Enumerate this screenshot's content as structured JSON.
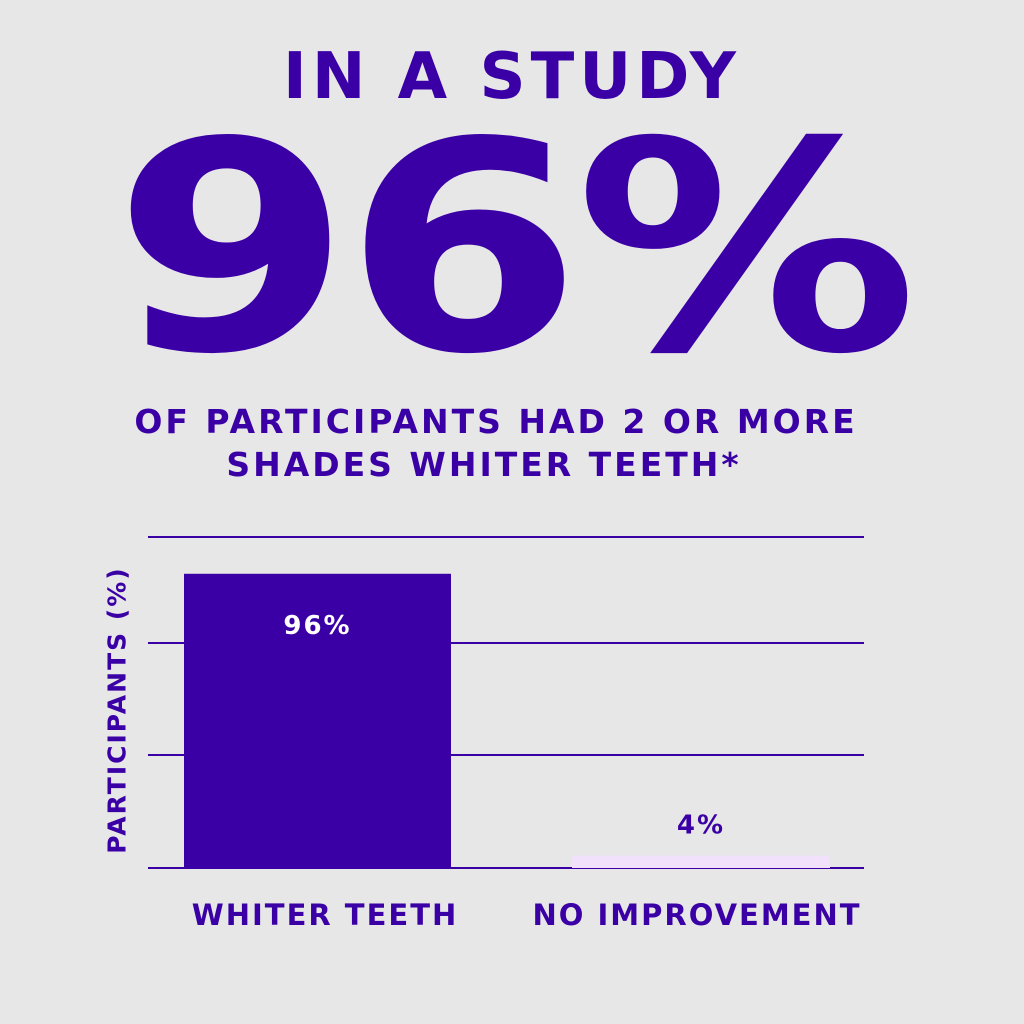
{
  "headline": {
    "title": "IN A STUDY",
    "big_stat": "96%",
    "subtitle_line1": "OF PARTICIPANTS HAD 2 OR MORE",
    "subtitle_line2": "SHADES WHITER TEETH*"
  },
  "colors": {
    "primary": "#3a00a6",
    "secondary": "#f1e1fa",
    "background": "#e7e7e7"
  },
  "chart_data": {
    "type": "bar",
    "ylabel": "PARTICIPANTS (%)",
    "categories": [
      "WHITER TEETH",
      "NO IMPROVEMENT"
    ],
    "values": [
      96,
      4
    ],
    "data_labels": [
      "96%",
      "4%"
    ],
    "ylim": [
      0,
      108
    ],
    "grid": true
  }
}
